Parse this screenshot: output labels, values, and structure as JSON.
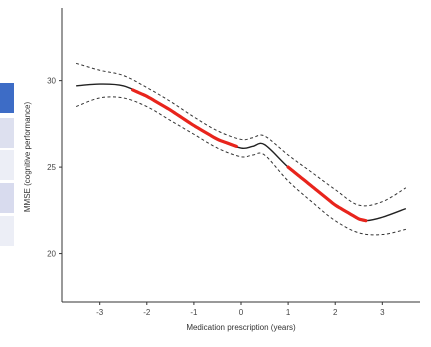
{
  "chart_data": {
    "type": "line",
    "title": "",
    "xlabel": "Medication prescription (years)",
    "ylabel": "MMSE (cognitive performance)",
    "xlim": [
      -3.8,
      3.8
    ],
    "ylim": [
      17.2,
      34.2
    ],
    "x_ticks": [
      -3,
      -2,
      -1,
      0,
      1,
      2,
      3
    ],
    "y_ticks": [
      20,
      25,
      30
    ],
    "grid": false,
    "legend": "none",
    "colors": {
      "estimate": "#222222",
      "significant": "#e8241c",
      "ci": "#333333",
      "axis": "#333333"
    },
    "significant_ranges": [
      [
        -2.3,
        -0.1
      ],
      [
        1.0,
        2.65
      ]
    ],
    "series": [
      {
        "role": "estimate",
        "x": [
          -3.5,
          -3.0,
          -2.5,
          -2.0,
          -1.5,
          -1.0,
          -0.5,
          0.0,
          0.25,
          0.5,
          1.0,
          1.5,
          2.0,
          2.5,
          2.65,
          3.0,
          3.5
        ],
        "y": [
          29.7,
          29.8,
          29.7,
          29.1,
          28.3,
          27.4,
          26.6,
          26.1,
          26.2,
          26.3,
          25.0,
          23.9,
          22.8,
          22.0,
          21.9,
          22.1,
          22.6
        ]
      },
      {
        "role": "ci_upper",
        "x": [
          -3.5,
          -3.0,
          -2.5,
          -2.0,
          -1.5,
          -1.0,
          -0.5,
          0.0,
          0.25,
          0.5,
          1.0,
          1.5,
          2.0,
          2.5,
          3.0,
          3.5
        ],
        "y": [
          31.0,
          30.6,
          30.3,
          29.6,
          28.8,
          27.9,
          27.1,
          26.6,
          26.7,
          26.8,
          25.7,
          24.7,
          23.7,
          22.8,
          23.0,
          23.8
        ]
      },
      {
        "role": "ci_lower",
        "x": [
          -3.5,
          -3.0,
          -2.5,
          -2.0,
          -1.5,
          -1.0,
          -0.5,
          0.0,
          0.25,
          0.5,
          1.0,
          1.5,
          2.0,
          2.5,
          3.0,
          3.5
        ],
        "y": [
          28.5,
          29.0,
          29.0,
          28.5,
          27.7,
          26.9,
          26.1,
          25.6,
          25.7,
          25.7,
          24.2,
          23.0,
          21.9,
          21.2,
          21.1,
          21.4
        ]
      }
    ]
  },
  "left_strip": {
    "colors": [
      "#3d6cc6",
      "#dde0ef",
      "#eceef6",
      "#d8dbee",
      "#eceef6"
    ]
  }
}
